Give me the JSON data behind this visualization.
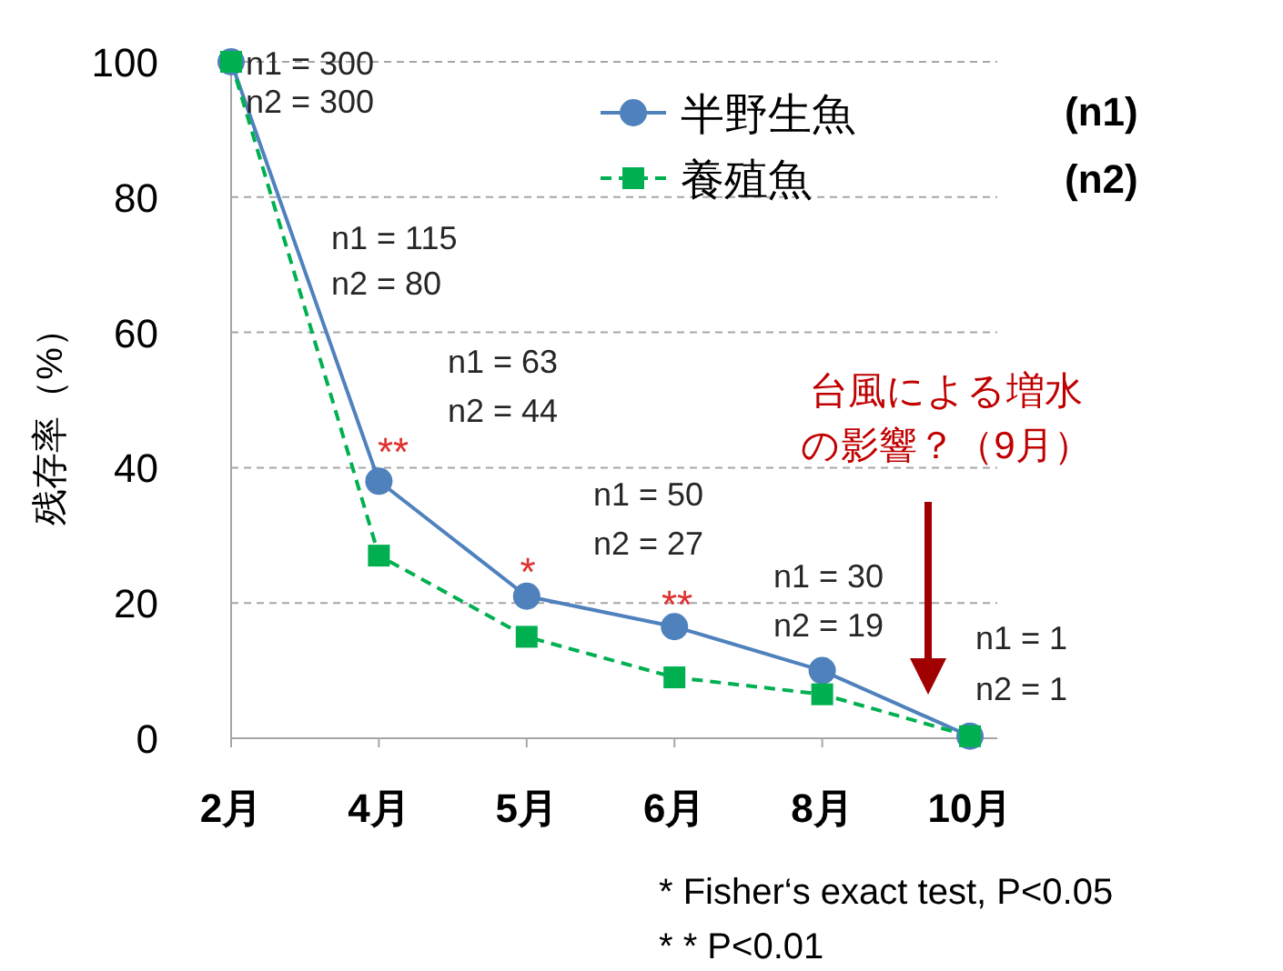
{
  "chart_data": {
    "type": "line",
    "ylabel": "残存率（%）",
    "categories": [
      "2月",
      "4月",
      "5月",
      "6月",
      "8月",
      "10月"
    ],
    "series": [
      {
        "name": "半野生魚",
        "color": "#4f81bd",
        "values": [
          100,
          38,
          21,
          16.5,
          10,
          0.3
        ],
        "marker": "circle",
        "line_style": "solid"
      },
      {
        "name": "養殖魚",
        "color": "#00b050",
        "values": [
          100,
          27,
          15,
          9,
          6.5,
          0.3
        ],
        "marker": "square",
        "line_style": "dashed"
      }
    ],
    "ylim": [
      0,
      100
    ],
    "yticks": [
      0,
      20,
      40,
      60,
      80,
      100
    ],
    "grid": "y",
    "legend": "top right",
    "annotations": [
      "n1 = 300",
      "n2 = 300",
      "n1 = 115",
      "n2 =  80",
      "n1 = 63",
      "n2 = 44",
      "n1 = 50",
      "n2 = 27",
      "n1 = 30",
      "n2 = 19",
      "n1 = 1",
      "n2 = 1",
      "**",
      "*",
      "**",
      "(n1)",
      "(n2)",
      "台風による増水",
      "の影響？（9月）",
      "* Fisher‘s exact test, P<0.05",
      "* * P<0.01"
    ]
  }
}
